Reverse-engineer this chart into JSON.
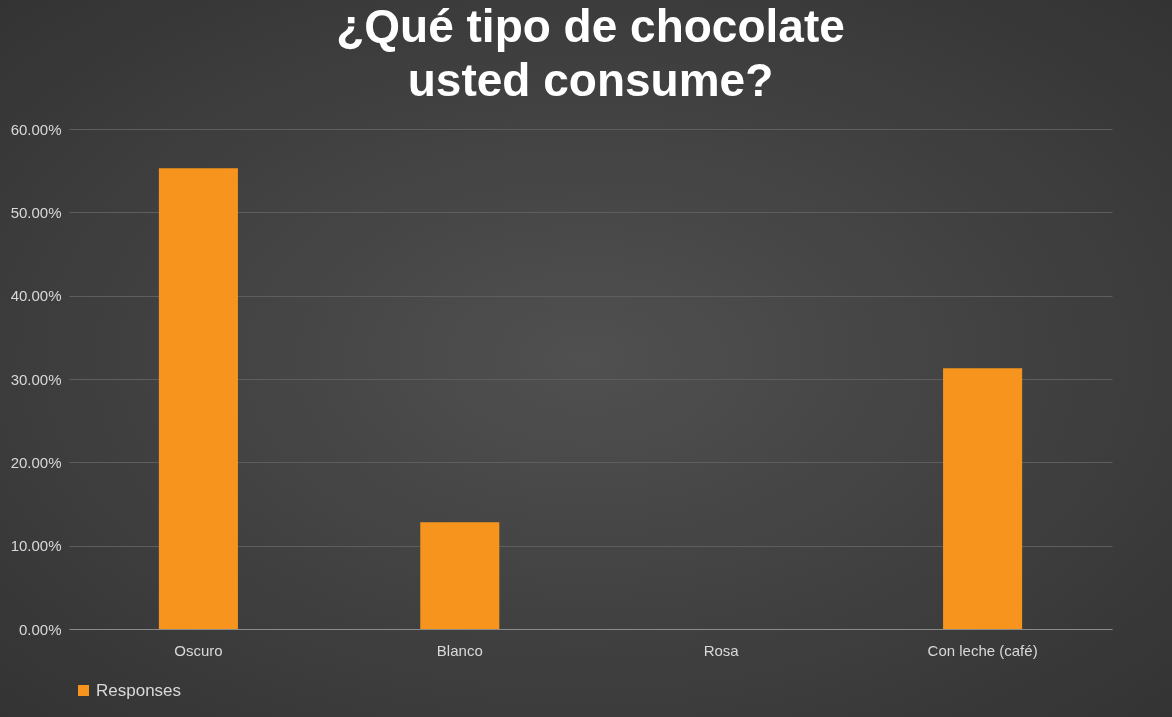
{
  "chart_data": {
    "type": "bar",
    "title": "¿Qué tipo de chocolate usted consume?",
    "categories": [
      "Oscuro",
      "Blanco",
      "Rosa",
      "Con leche (café)"
    ],
    "series": [
      {
        "name": "Responses",
        "color": "#f7941d",
        "values": [
          55.3,
          12.8,
          0,
          31.3
        ]
      }
    ],
    "ylim": [
      0,
      60
    ],
    "yticks": [
      {
        "value": 0,
        "label": "0.00%"
      },
      {
        "value": 10,
        "label": "10.00%"
      },
      {
        "value": 20,
        "label": "20.00%"
      },
      {
        "value": 30,
        "label": "30.00%"
      },
      {
        "value": 40,
        "label": "40.00%"
      },
      {
        "value": 50,
        "label": "50.00%"
      },
      {
        "value": 60,
        "label": "60.00%"
      }
    ],
    "grid": "y",
    "legend": "bottom"
  }
}
